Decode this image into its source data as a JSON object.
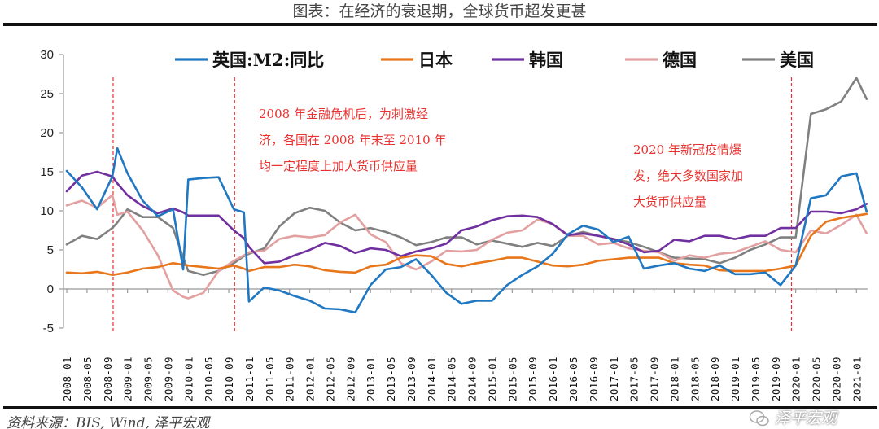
{
  "title": "图表：在经济的衰退期，全球货币超发更甚",
  "source": "资料来源：BIS, Wind, 泽平宏观",
  "watermark": {
    "text": "泽平宏观",
    "icon": "wechat-icon"
  },
  "annotations": [
    {
      "lines": [
        "2008 年金融危机后，为刺激经",
        "济，各国在 2008 年末至 2010 年",
        "均一定程度上加大货币供应量"
      ]
    },
    {
      "lines": [
        "2020 年新冠疫情爆",
        "发，绝大多数国家加",
        "大货币供应量"
      ]
    }
  ],
  "chart_data": {
    "type": "line",
    "title": "",
    "xlabel": "",
    "ylabel": "",
    "ylim": [
      -5,
      30
    ],
    "yticks": [
      "-5",
      "0",
      "5",
      "10",
      "15",
      "20",
      "25",
      "30"
    ],
    "xtick_labels": [
      "2008-01",
      "2008-05",
      "2008-09",
      "2009-01",
      "2009-05",
      "2009-09",
      "2010-01",
      "2010-05",
      "2010-09",
      "2011-01",
      "2011-05",
      "2011-09",
      "2012-01",
      "2012-05",
      "2012-09",
      "2013-01",
      "2013-05",
      "2013-09",
      "2014-01",
      "2014-05",
      "2014-09",
      "2015-01",
      "2015-05",
      "2015-09",
      "2016-01",
      "2016-05",
      "2016-09",
      "2017-01",
      "2017-05",
      "2017-09",
      "2018-01",
      "2018-05",
      "2018-09",
      "2019-01",
      "2019-05",
      "2019-09",
      "2020-01",
      "2020-05",
      "2020-09",
      "2021-01"
    ],
    "grid": false,
    "legend_position": "top",
    "reference_lines": [
      "2008-10",
      "2010-10",
      "2019-12"
    ],
    "reference_line_color": "#e8322f",
    "x": [
      "2008-01",
      "2008-04",
      "2008-07",
      "2008-10",
      "2008-11",
      "2009-01",
      "2009-04",
      "2009-07",
      "2009-10",
      "2009-12",
      "2010-01",
      "2010-04",
      "2010-07",
      "2010-10",
      "2010-12",
      "2011-01",
      "2011-04",
      "2011-07",
      "2011-10",
      "2012-01",
      "2012-04",
      "2012-07",
      "2012-10",
      "2013-01",
      "2013-04",
      "2013-07",
      "2013-10",
      "2014-01",
      "2014-04",
      "2014-07",
      "2014-10",
      "2015-01",
      "2015-04",
      "2015-07",
      "2015-10",
      "2016-01",
      "2016-04",
      "2016-07",
      "2016-10",
      "2017-01",
      "2017-04",
      "2017-07",
      "2017-10",
      "2018-01",
      "2018-04",
      "2018-07",
      "2018-10",
      "2019-01",
      "2019-04",
      "2019-07",
      "2019-10",
      "2020-01",
      "2020-04",
      "2020-07",
      "2020-10",
      "2021-01",
      "2021-03"
    ],
    "series": [
      {
        "name": "英国:M2:同比",
        "color": "#1f78c1",
        "values": [
          15.1,
          13,
          10.2,
          14.4,
          18,
          14.8,
          11.3,
          9.3,
          10.2,
          2.5,
          14,
          14.2,
          14.3,
          10.2,
          9.8,
          -1.6,
          0.2,
          -0.2,
          -0.9,
          -1.5,
          -2.5,
          -2.6,
          -3,
          0.5,
          2.5,
          2.8,
          3.8,
          1.8,
          -0.5,
          -1.9,
          -1.5,
          -1.5,
          0.5,
          1.8,
          2.9,
          4.5,
          7,
          8.1,
          7.6,
          6.0,
          6.7,
          2.6,
          3.0,
          3.3,
          2.6,
          2.3,
          3.0,
          1.9,
          1.9,
          2.1,
          0.5,
          3.0,
          11.6,
          12.0,
          14.4,
          14.8,
          9.9
        ]
      },
      {
        "name": "日本",
        "color": "#e8761b",
        "values": [
          2.1,
          2.0,
          2.2,
          1.8,
          1.9,
          2.1,
          2.6,
          2.8,
          3.3,
          3.1,
          3.0,
          2.8,
          2.6,
          3.0,
          2.6,
          2.3,
          2.8,
          2.8,
          3.1,
          2.9,
          2.4,
          2.2,
          2.1,
          2.9,
          3.1,
          4.0,
          4.3,
          4.2,
          3.2,
          2.9,
          3.3,
          3.6,
          4.0,
          4.0,
          3.5,
          3.0,
          2.9,
          3.1,
          3.6,
          3.8,
          4.0,
          4.0,
          4.0,
          3.3,
          3.1,
          3.0,
          2.4,
          2.3,
          2.3,
          2.3,
          2.6,
          3.0,
          6.8,
          8.6,
          9.1,
          9.4,
          9.6
        ]
      },
      {
        "name": "韩国",
        "color": "#7030a0",
        "values": [
          12.5,
          14.5,
          15.0,
          14.4,
          13.5,
          12.0,
          10.6,
          9.7,
          10.3,
          9.8,
          9.4,
          9.4,
          9.4,
          7.5,
          6.5,
          5.4,
          3.3,
          3.5,
          4.3,
          5.0,
          5.9,
          5.5,
          4.6,
          5.2,
          5.0,
          4.2,
          4.8,
          5.2,
          5.8,
          7.5,
          8.0,
          8.8,
          9.3,
          9.4,
          9.2,
          8.3,
          6.9,
          7.1,
          6.8,
          6.4,
          5.7,
          4.7,
          4.9,
          6.3,
          6.1,
          6.8,
          6.8,
          6.4,
          6.8,
          6.8,
          7.8,
          7.8,
          9.9,
          9.9,
          9.7,
          10.2,
          10.9
        ]
      },
      {
        "name": "德国",
        "color": "#e3a0a0",
        "values": [
          10.7,
          11.3,
          10.4,
          12.0,
          9.5,
          9.9,
          7.5,
          4.3,
          -0.2,
          -1.0,
          -1.2,
          -0.5,
          2.3,
          3.6,
          4.3,
          4.7,
          4.9,
          6.4,
          6.8,
          6.6,
          6.9,
          8.5,
          9.5,
          7.0,
          6.0,
          3.3,
          2.5,
          3.5,
          4.9,
          4.8,
          5.0,
          6.3,
          7.2,
          7.5,
          8.9,
          8.3,
          6.8,
          6.8,
          5.7,
          5.9,
          5.2,
          4.9,
          4.7,
          3.6,
          4.3,
          4.0,
          4.5,
          4.7,
          5.4,
          6.1,
          5.0,
          4.7,
          7.5,
          7.1,
          8.2,
          9.5,
          7.1
        ]
      },
      {
        "name": "美国",
        "color": "#808080",
        "values": [
          5.7,
          6.8,
          6.4,
          7.8,
          8.5,
          10.2,
          9.2,
          9.2,
          7.8,
          4.0,
          2.3,
          1.8,
          2.3,
          3.3,
          4.2,
          4.5,
          5.2,
          8.0,
          9.7,
          10.4,
          10.0,
          8.5,
          7.5,
          7.8,
          7.3,
          6.6,
          5.6,
          6.0,
          6.6,
          6.6,
          5.7,
          6.2,
          5.8,
          5.4,
          5.9,
          5.5,
          6.8,
          7.3,
          6.8,
          6.4,
          6.0,
          5.4,
          4.7,
          4.0,
          3.9,
          3.8,
          3.3,
          4.0,
          5.0,
          5.7,
          6.6,
          6.6,
          22.4,
          23.0,
          24.0,
          27.0,
          24.3
        ]
      }
    ]
  }
}
